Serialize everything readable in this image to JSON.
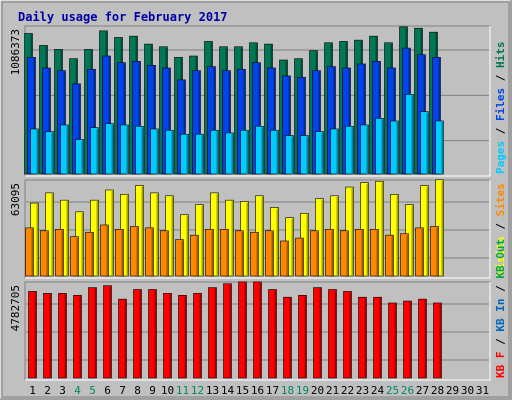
{
  "chart_data": [
    {
      "type": "bar",
      "title": "Daily usage for February 2017",
      "ylim_label": "1086373",
      "legend": [
        {
          "label": "Pages",
          "color": "#00ccff"
        },
        {
          "label": "Files",
          "color": "#0044ee"
        },
        {
          "label": "Hits",
          "color": "#007755"
        }
      ],
      "x": [
        1,
        2,
        3,
        4,
        5,
        6,
        7,
        8,
        9,
        10,
        11,
        12,
        13,
        14,
        15,
        16,
        17,
        18,
        19,
        20,
        21,
        22,
        23,
        24,
        25,
        26,
        27,
        28,
        29,
        30,
        31
      ],
      "weekend_days": [
        4,
        5,
        11,
        12,
        18,
        19,
        25,
        26
      ],
      "ymax": 1086373,
      "series": [
        {
          "name": "Hits",
          "values": [
            1060000,
            970000,
            940000,
            870000,
            940000,
            1080000,
            1030000,
            1040000,
            980000,
            960000,
            880000,
            890000,
            1000000,
            960000,
            960000,
            990000,
            980000,
            860000,
            870000,
            930000,
            990000,
            1000000,
            1010000,
            1040000,
            990000,
            1110000,
            1100000,
            1070000,
            0,
            0,
            0
          ]
        },
        {
          "name": "Files",
          "values": [
            880000,
            800000,
            780000,
            680000,
            790000,
            890000,
            840000,
            850000,
            820000,
            800000,
            710000,
            780000,
            810000,
            780000,
            790000,
            840000,
            800000,
            740000,
            730000,
            780000,
            810000,
            800000,
            830000,
            850000,
            800000,
            950000,
            900000,
            880000,
            0,
            0,
            0
          ]
        },
        {
          "name": "Pages",
          "values": [
            340000,
            320000,
            370000,
            260000,
            350000,
            380000,
            370000,
            360000,
            340000,
            330000,
            300000,
            300000,
            330000,
            310000,
            330000,
            360000,
            330000,
            290000,
            290000,
            320000,
            340000,
            360000,
            370000,
            420000,
            400000,
            600000,
            470000,
            400000,
            0,
            0,
            0
          ]
        }
      ]
    },
    {
      "type": "bar",
      "ylim_label": "63095",
      "legend": [
        {
          "label": "Visits",
          "color": "#ffff00"
        },
        {
          "label": "Sites",
          "color": "#ff8800"
        }
      ],
      "ymax": 63095,
      "series": [
        {
          "name": "Visits",
          "values": [
            50000,
            57000,
            52000,
            44000,
            52000,
            59000,
            56000,
            62000,
            57000,
            55000,
            42000,
            49000,
            57000,
            52000,
            51000,
            55000,
            47000,
            40000,
            43000,
            53000,
            55000,
            61000,
            64000,
            65000,
            56000,
            49000,
            62000,
            66000,
            0,
            0,
            0
          ]
        },
        {
          "name": "Sites",
          "values": [
            33000,
            31000,
            32000,
            27000,
            30000,
            35000,
            32000,
            34000,
            33000,
            31000,
            25000,
            28000,
            32000,
            32000,
            31000,
            30000,
            31000,
            24000,
            26000,
            31000,
            32000,
            31000,
            32000,
            32000,
            28000,
            29000,
            33000,
            34000,
            0,
            0,
            0
          ]
        }
      ]
    },
    {
      "type": "bar",
      "ylim_label": "4782705",
      "legend": [
        {
          "label": "KB F",
          "color": "#ff0000"
        },
        {
          "label": "KB In",
          "color": "#0066bb"
        },
        {
          "label": "KB Out",
          "color": "#00aa44"
        }
      ],
      "ymax": 4782705,
      "series": [
        {
          "name": "KB F",
          "values": [
            4500000,
            4400000,
            4400000,
            4300000,
            4700000,
            4800000,
            4100000,
            4600000,
            4600000,
            4400000,
            4300000,
            4400000,
            4700000,
            4900000,
            5000000,
            5000000,
            4600000,
            4200000,
            4300000,
            4700000,
            4600000,
            4500000,
            4200000,
            4200000,
            3900000,
            4000000,
            4100000,
            3900000,
            0,
            0,
            0
          ]
        }
      ]
    }
  ]
}
